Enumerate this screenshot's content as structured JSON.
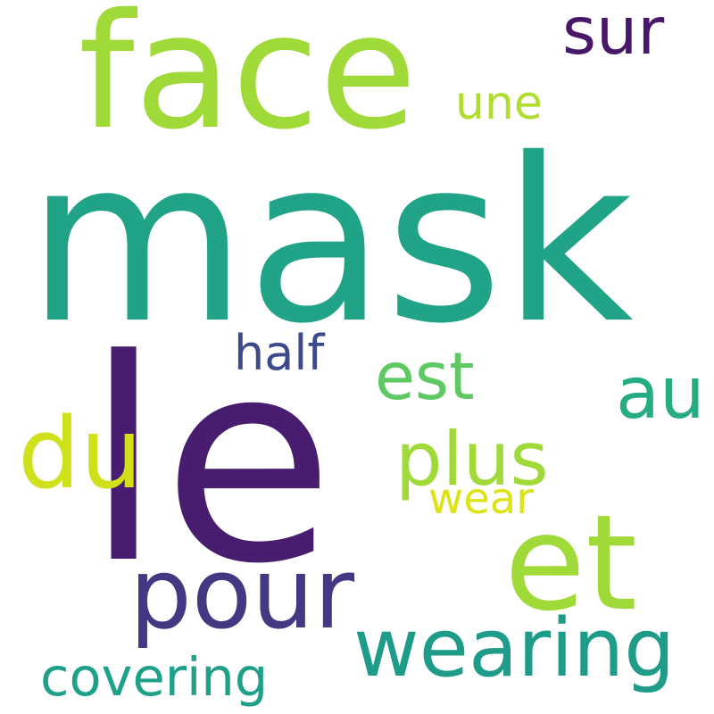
{
  "words": [
    {
      "text": "mask",
      "color": "#20a386"
    },
    {
      "text": "le",
      "color": "#481d6f"
    },
    {
      "text": "face",
      "color": "#a0da39"
    },
    {
      "text": "et",
      "color": "#a0da39"
    },
    {
      "text": "pour",
      "color": "#453882"
    },
    {
      "text": "wearing",
      "color": "#1e9c89"
    },
    {
      "text": "du",
      "color": "#d0e11c"
    },
    {
      "text": "plus",
      "color": "#a0da39"
    },
    {
      "text": "sur",
      "color": "#481769"
    },
    {
      "text": "au",
      "color": "#25ac82"
    },
    {
      "text": "est",
      "color": "#5ec962"
    },
    {
      "text": "covering",
      "color": "#1fa088"
    },
    {
      "text": "half",
      "color": "#3e4989"
    },
    {
      "text": "une",
      "color": "#b0dd2f"
    },
    {
      "text": "wear",
      "color": "#dde318"
    }
  ]
}
